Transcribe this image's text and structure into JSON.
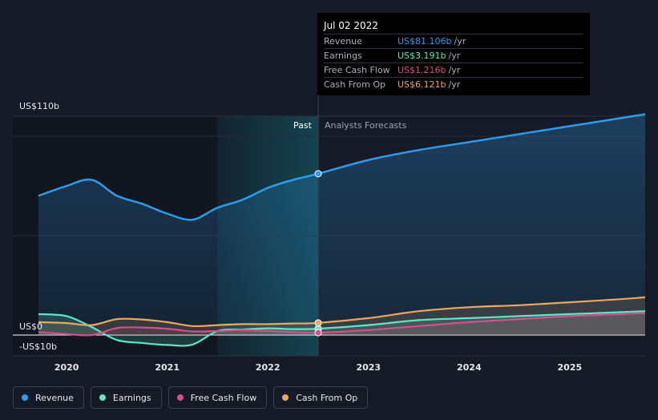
{
  "colors": {
    "revenue": "#2f9bea",
    "earnings": "#5ee6c7",
    "free_cash_flow": "#d44f8c",
    "cash_from_op": "#e8a85f",
    "background": "#151b26"
  },
  "tooltip": {
    "date": "Jul 02 2022",
    "unit": "/yr",
    "rows": [
      {
        "label": "Revenue",
        "value": "US$81.106b",
        "color": "#2f9bea"
      },
      {
        "label": "Earnings",
        "value": "US$3.191b",
        "color": "#5ee6c7"
      },
      {
        "label": "Free Cash Flow",
        "value": "US$1.216b",
        "color": "#d44f8c"
      },
      {
        "label": "Cash From Op",
        "value": "US$6.121b",
        "color": "#e8a85f"
      }
    ]
  },
  "legend": [
    {
      "label": "Revenue",
      "color": "#2f9bea"
    },
    {
      "label": "Earnings",
      "color": "#5ee6c7"
    },
    {
      "label": "Free Cash Flow",
      "color": "#d44f8c"
    },
    {
      "label": "Cash From Op",
      "color": "#e8a85f"
    }
  ],
  "chart_data": {
    "type": "line",
    "ylabels": {
      "top": "US$110b",
      "zero": "US$0",
      "bottom": "-US$10b"
    },
    "ylim": [
      -10,
      110
    ],
    "xlim": [
      2019.72,
      2025.75
    ],
    "xticks": [
      2020,
      2021,
      2022,
      2023,
      2024,
      2025
    ],
    "xtick_labels": [
      "2020",
      "2021",
      "2022",
      "2023",
      "2024",
      "2025"
    ],
    "past_label": "Past",
    "forecast_label": "Analysts Forecasts",
    "divider_x": 2022.5,
    "highlight_start_x": 2021.5,
    "series": [
      {
        "key": "revenue",
        "name": "Revenue",
        "x": [
          2019.72,
          2020.0,
          2020.25,
          2020.5,
          2020.75,
          2021.0,
          2021.25,
          2021.5,
          2021.75,
          2022.0,
          2022.25,
          2022.5,
          2023.0,
          2023.5,
          2024.0,
          2024.5,
          2025.0,
          2025.5,
          2025.75
        ],
        "y": [
          70,
          75,
          78,
          70,
          66,
          61,
          58,
          64,
          68,
          74,
          78,
          81.1,
          88,
          93,
          97,
          101,
          105,
          109,
          111
        ]
      },
      {
        "key": "earnings",
        "name": "Earnings",
        "x": [
          2019.72,
          2020.0,
          2020.25,
          2020.5,
          2020.75,
          2021.0,
          2021.25,
          2021.5,
          2021.75,
          2022.0,
          2022.25,
          2022.5,
          2023.0,
          2023.5,
          2024.0,
          2024.5,
          2025.0,
          2025.5,
          2025.75
        ],
        "y": [
          10.5,
          9.5,
          4,
          -2.5,
          -4,
          -5,
          -4.8,
          2,
          2.8,
          3.4,
          3,
          3.2,
          5,
          7.5,
          8.5,
          9.5,
          10.5,
          11.5,
          12
        ]
      },
      {
        "key": "free_cash_flow",
        "name": "Free Cash Flow",
        "x": [
          2019.72,
          2020.0,
          2020.25,
          2020.5,
          2020.75,
          2021.0,
          2021.25,
          2021.5,
          2021.75,
          2022.0,
          2022.25,
          2022.5,
          2023.0,
          2023.5,
          2024.0,
          2024.5,
          2025.0,
          2025.5,
          2025.75
        ],
        "y": [
          1.5,
          0.5,
          0,
          3.5,
          3.8,
          3.2,
          1.8,
          2,
          2.5,
          2,
          1.5,
          1.2,
          2.5,
          4.5,
          6.5,
          8,
          9.5,
          10.5,
          11
        ]
      },
      {
        "key": "cash_from_op",
        "name": "Cash From Op",
        "x": [
          2019.72,
          2020.0,
          2020.25,
          2020.5,
          2020.75,
          2021.0,
          2021.25,
          2021.5,
          2021.75,
          2022.0,
          2022.25,
          2022.5,
          2023.0,
          2023.5,
          2024.0,
          2024.5,
          2025.0,
          2025.5,
          2025.75
        ],
        "y": [
          6.5,
          6,
          5,
          8,
          7.8,
          6.5,
          4.5,
          5,
          5.5,
          5.5,
          5.8,
          6.1,
          8.5,
          12,
          14,
          15,
          16.5,
          18,
          19
        ]
      }
    ]
  }
}
